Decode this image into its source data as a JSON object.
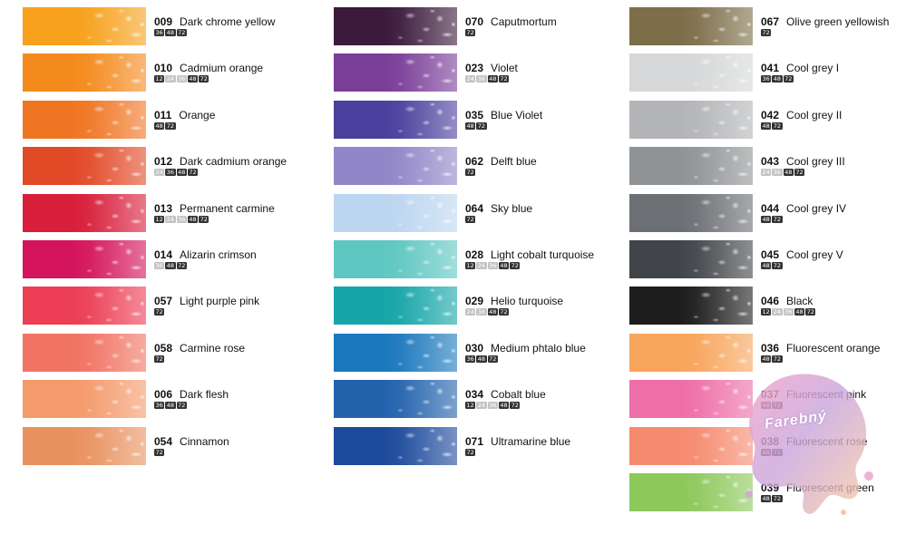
{
  "columns": [
    [
      {
        "code": "009",
        "name": "Dark chrome yellow",
        "color": "#f7a11c",
        "sizes": [
          "36",
          "48",
          "72"
        ],
        "light": []
      },
      {
        "code": "010",
        "name": "Cadmium orange",
        "color": "#f48a1c",
        "sizes": [
          "12",
          "24",
          "36",
          "48",
          "72"
        ],
        "light": [
          "24",
          "36"
        ]
      },
      {
        "code": "011",
        "name": "Orange",
        "color": "#f07522",
        "sizes": [
          "48",
          "72"
        ],
        "light": []
      },
      {
        "code": "012",
        "name": "Dark cadmium orange",
        "color": "#e24a27",
        "sizes": [
          "24",
          "36",
          "48",
          "72"
        ],
        "light": [
          "24"
        ]
      },
      {
        "code": "013",
        "name": "Permanent carmine",
        "color": "#d81e3a",
        "sizes": [
          "12",
          "24",
          "36",
          "48",
          "72"
        ],
        "light": [
          "24",
          "36"
        ]
      },
      {
        "code": "014",
        "name": "Alizarin crimson",
        "color": "#d4145a",
        "sizes": [
          "36",
          "48",
          "72"
        ],
        "light": [
          "36"
        ]
      },
      {
        "code": "057",
        "name": "Light  purple pink",
        "color": "#ec3e55",
        "sizes": [
          "72"
        ],
        "light": []
      },
      {
        "code": "058",
        "name": "Carmine rose",
        "color": "#f17363",
        "sizes": [
          "72"
        ],
        "light": []
      },
      {
        "code": "006",
        "name": "Dark flesh",
        "color": "#f49a6b",
        "sizes": [
          "36",
          "48",
          "72"
        ],
        "light": []
      },
      {
        "code": "054",
        "name": "Cinnamon",
        "color": "#e9925f",
        "sizes": [
          "72"
        ],
        "light": []
      }
    ],
    [
      {
        "code": "070",
        "name": "Caputmortum",
        "color": "#3b1a3c",
        "sizes": [
          "72"
        ],
        "light": []
      },
      {
        "code": "023",
        "name": "Violet",
        "color": "#7a3d98",
        "sizes": [
          "24",
          "36",
          "48",
          "72"
        ],
        "light": [
          "24",
          "36"
        ]
      },
      {
        "code": "035",
        "name": "Blue Violet",
        "color": "#4a3f9c",
        "sizes": [
          "48",
          "72"
        ],
        "light": []
      },
      {
        "code": "062",
        "name": "Delft blue",
        "color": "#9086c8",
        "sizes": [
          "72"
        ],
        "light": []
      },
      {
        "code": "064",
        "name": "Sky blue",
        "color": "#bcd6f0",
        "sizes": [
          "72"
        ],
        "light": []
      },
      {
        "code": "028",
        "name": "Light cobalt turquoise",
        "color": "#5fc7c2",
        "sizes": [
          "12",
          "24",
          "36",
          "48",
          "72"
        ],
        "light": [
          "24",
          "36"
        ]
      },
      {
        "code": "029",
        "name": "Helio turquoise",
        "color": "#15a5a8",
        "sizes": [
          "24",
          "36",
          "48",
          "72"
        ],
        "light": [
          "24",
          "36"
        ]
      },
      {
        "code": "030",
        "name": "Medium phtalo blue",
        "color": "#1a78bd",
        "sizes": [
          "36",
          "48",
          "72"
        ],
        "light": []
      },
      {
        "code": "034",
        "name": "Cobalt blue",
        "color": "#2362ad",
        "sizes": [
          "12",
          "24",
          "36",
          "48",
          "72"
        ],
        "light": [
          "24",
          "36"
        ]
      },
      {
        "code": "071",
        "name": "Ultramarine blue",
        "color": "#1d4a9c",
        "sizes": [
          "72"
        ],
        "light": []
      }
    ],
    [
      {
        "code": "067",
        "name": "Olive green yellowish",
        "color": "#7d6e4a",
        "sizes": [
          "72"
        ],
        "light": []
      },
      {
        "code": "041",
        "name": "Cool grey I",
        "color": "#d5d7d8",
        "sizes": [
          "36",
          "48",
          "72"
        ],
        "light": []
      },
      {
        "code": "042",
        "name": "Cool grey II",
        "color": "#b2b4b7",
        "sizes": [
          "48",
          "72"
        ],
        "light": []
      },
      {
        "code": "043",
        "name": "Cool grey III",
        "color": "#909396",
        "sizes": [
          "24",
          "36",
          "48",
          "72"
        ],
        "light": [
          "24",
          "36"
        ]
      },
      {
        "code": "044",
        "name": "Cool grey IV",
        "color": "#6c6f73",
        "sizes": [
          "48",
          "72"
        ],
        "light": []
      },
      {
        "code": "045",
        "name": "Cool grey V",
        "color": "#414448",
        "sizes": [
          "48",
          "72"
        ],
        "light": []
      },
      {
        "code": "046",
        "name": "Black",
        "color": "#1d1d1d",
        "sizes": [
          "12",
          "24",
          "36",
          "48",
          "72"
        ],
        "light": [
          "24",
          "36"
        ]
      },
      {
        "code": "036",
        "name": "Fluorescent orange",
        "color": "#f8a45a",
        "sizes": [
          "48",
          "72"
        ],
        "light": []
      },
      {
        "code": "037",
        "name": "Fluorescent pink",
        "color": "#ee6ea8",
        "sizes": [
          "48",
          "72"
        ],
        "light": []
      },
      {
        "code": "038",
        "name": "Fluorescent rose",
        "color": "#f58a6e",
        "sizes": [
          "48",
          "72"
        ],
        "light": []
      },
      {
        "code": "039",
        "name": "Fluorescent green",
        "color": "#8dc85a",
        "sizes": [
          "48",
          "72"
        ],
        "light": []
      }
    ]
  ],
  "watermark": {
    "text": "Farebný"
  }
}
